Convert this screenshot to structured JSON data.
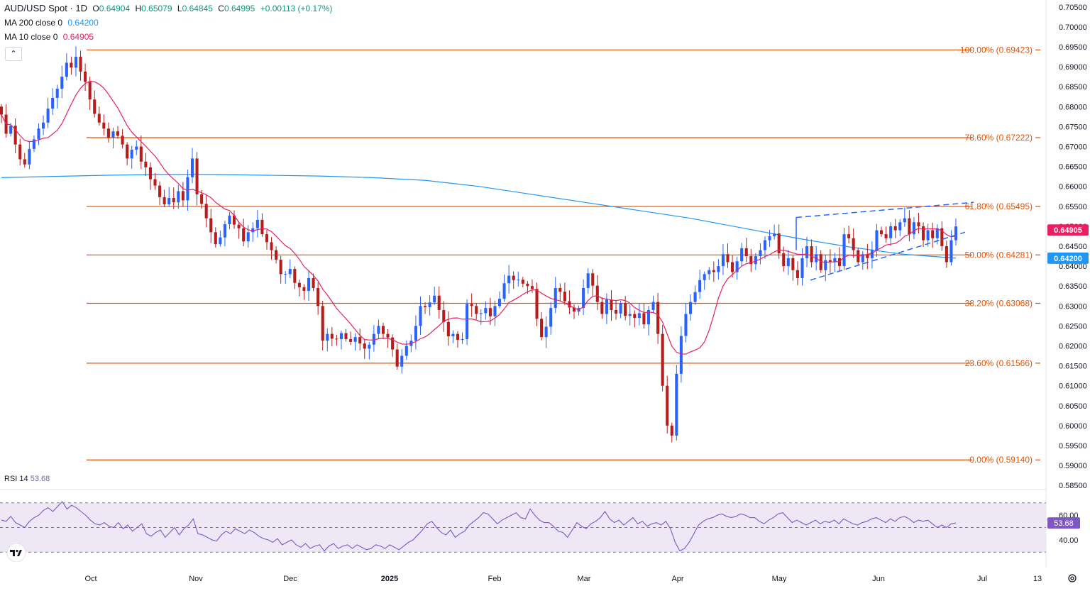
{
  "header": {
    "symbol": "AUD/USD Spot · 1D",
    "open_label": "O",
    "open": "0.64904",
    "high_label": "H",
    "high": "0.65079",
    "low_label": "L",
    "low": "0.64845",
    "close_label": "C",
    "close": "0.64995",
    "change": "+0.00113 (+0.17%)",
    "ma200_label": "MA 200 close 0",
    "ma200_value": "0.64200",
    "ma10_label": "MA 10 close 0",
    "ma10_value": "0.64905",
    "collapse_glyph": "⌃"
  },
  "rsi": {
    "label": "RSI 14",
    "value": "53.68"
  },
  "colors": {
    "up": "#2962ff",
    "down": "#b71c1c",
    "fib": "#e65100",
    "ma200": "#2196f3",
    "ma10": "#e91e63",
    "rsi_line": "#7e57c2",
    "rsi_bg": "#ede7f6"
  },
  "icons": {
    "logo": "tradingview-logo-icon",
    "settings": "gear-icon"
  },
  "chart_data": {
    "type": "candlestick",
    "ylim": [
      0.5845,
      0.7055
    ],
    "y_ticks": [
      "0.70500",
      "0.70000",
      "0.69500",
      "0.69000",
      "0.68500",
      "0.68000",
      "0.67500",
      "0.67000",
      "0.66500",
      "0.66000",
      "0.65500",
      "0.65000",
      "0.64500",
      "0.64000",
      "0.63500",
      "0.63000",
      "0.62500",
      "0.62000",
      "0.61500",
      "0.61000",
      "0.60500",
      "0.60000",
      "0.59500",
      "0.59000",
      "0.58500"
    ],
    "x_ticks": [
      "Oct",
      "Nov",
      "Dec",
      "2025",
      "Feb",
      "Mar",
      "Apr",
      "May",
      "Jun",
      "Jul",
      "13"
    ],
    "fib_levels": [
      {
        "label": "100.00% (0.69423)",
        "value": 0.69423
      },
      {
        "label": "78.60% (0.67222)",
        "value": 0.67222
      },
      {
        "label": "61.80% (0.65495)",
        "value": 0.65495
      },
      {
        "label": "50.00% (0.64281)",
        "value": 0.64281
      },
      {
        "label": "38.20% (0.63068)",
        "value": 0.63068
      },
      {
        "label": "23.60% (0.61566)",
        "value": 0.61566
      },
      {
        "label": "0.00% (0.59140)",
        "value": 0.5914
      }
    ],
    "price_badges": [
      {
        "label": "0.64905",
        "value": 0.64905,
        "series": "ma10"
      },
      {
        "label": "0.64200",
        "value": 0.642,
        "series": "ma200"
      }
    ],
    "close_series": [
      0.678,
      0.6732,
      0.6752,
      0.6705,
      0.6668,
      0.6655,
      0.6694,
      0.6718,
      0.6745,
      0.676,
      0.6795,
      0.6822,
      0.6845,
      0.6875,
      0.691,
      0.6898,
      0.6925,
      0.6888,
      0.6862,
      0.6818,
      0.6782,
      0.676,
      0.6745,
      0.6722,
      0.6738,
      0.6727,
      0.6705,
      0.667,
      0.6692,
      0.67,
      0.6662,
      0.6648,
      0.6618,
      0.6602,
      0.6573,
      0.6555,
      0.6571,
      0.656,
      0.6588,
      0.6565,
      0.6623,
      0.667,
      0.658,
      0.6556,
      0.652,
      0.6485,
      0.6455,
      0.6472,
      0.6505,
      0.6527,
      0.6504,
      0.6495,
      0.6462,
      0.6485,
      0.6495,
      0.6516,
      0.648,
      0.646,
      0.644,
      0.6416,
      0.638,
      0.638,
      0.6393,
      0.6358,
      0.6347,
      0.6338,
      0.637,
      0.6345,
      0.63,
      0.6213,
      0.623,
      0.6218,
      0.6217,
      0.6232,
      0.6217,
      0.621,
      0.6222,
      0.6206,
      0.6193,
      0.6203,
      0.623,
      0.625,
      0.623,
      0.6221,
      0.6191,
      0.6148,
      0.6175,
      0.62,
      0.6213,
      0.625,
      0.63,
      0.6297,
      0.6309,
      0.6326,
      0.629,
      0.626,
      0.6224,
      0.623,
      0.6215,
      0.6217,
      0.6305,
      0.63,
      0.628,
      0.6282,
      0.6295,
      0.6274,
      0.63,
      0.6318,
      0.6357,
      0.6376,
      0.6365,
      0.6366,
      0.6356,
      0.635,
      0.6343,
      0.6268,
      0.6222,
      0.6248,
      0.6295,
      0.6345,
      0.6336,
      0.6312,
      0.6296,
      0.6286,
      0.6295,
      0.6345,
      0.6382,
      0.6351,
      0.631,
      0.628,
      0.6316,
      0.629,
      0.6281,
      0.6307,
      0.6275,
      0.628,
      0.627,
      0.6282,
      0.6254,
      0.629,
      0.631,
      0.623,
      0.61,
      0.6,
      0.5975,
      0.613,
      0.6225,
      0.628,
      0.631,
      0.6335,
      0.6365,
      0.638,
      0.639,
      0.6385,
      0.64,
      0.643,
      0.641,
      0.6385,
      0.6412,
      0.6445,
      0.6425,
      0.6405,
      0.6425,
      0.644,
      0.6465,
      0.6475,
      0.6482,
      0.6432,
      0.64,
      0.642,
      0.639,
      0.637,
      0.642,
      0.645,
      0.641,
      0.643,
      0.639,
      0.6415,
      0.641,
      0.642,
      0.64,
      0.648,
      0.647,
      0.644,
      0.641,
      0.643,
      0.642,
      0.644,
      0.649,
      0.648,
      0.647,
      0.65,
      0.649,
      0.651,
      0.652,
      0.648,
      0.651,
      0.65,
      0.6465,
      0.649,
      0.647,
      0.6495,
      0.645,
      0.641,
      0.6465,
      0.64995
    ],
    "ma200_series": [
      0.6622,
      0.6625,
      0.6628,
      0.663,
      0.663,
      0.6628,
      0.6626,
      0.6622,
      0.6615,
      0.66,
      0.658,
      0.656,
      0.654,
      0.652,
      0.6495,
      0.647,
      0.6448,
      0.643,
      0.642
    ],
    "rsi_series": [
      56,
      55,
      59,
      54,
      52,
      50,
      55,
      58,
      60,
      64,
      66,
      63,
      67,
      71,
      65,
      68,
      66,
      63,
      60,
      56,
      53,
      52,
      54,
      51,
      50,
      54,
      49,
      52,
      47,
      50,
      53,
      45,
      43,
      46,
      48,
      42,
      46,
      50,
      44,
      49,
      52,
      57,
      45,
      44,
      42,
      40,
      39,
      44,
      47,
      45,
      49,
      47,
      45,
      48,
      46,
      43,
      41,
      40,
      38,
      41,
      36,
      38,
      40,
      36,
      34,
      37,
      33,
      35,
      36,
      31,
      35,
      37,
      33,
      35,
      36,
      33,
      36,
      34,
      32,
      33,
      36,
      35,
      33,
      36,
      34,
      32,
      35,
      38,
      40,
      44,
      48,
      53,
      55,
      50,
      46,
      44,
      48,
      42,
      45,
      47,
      52,
      55,
      58,
      62,
      61,
      57,
      53,
      56,
      58,
      60,
      62,
      58,
      57,
      65,
      60,
      56,
      54,
      54,
      51,
      47,
      46,
      42,
      48,
      54,
      51,
      49,
      53,
      55,
      58,
      63,
      57,
      54,
      56,
      52,
      55,
      58,
      53,
      55,
      51,
      53,
      54,
      52,
      55,
      49,
      38,
      31,
      33,
      38,
      45,
      52,
      55,
      57,
      58,
      60,
      61,
      59,
      58,
      59,
      61,
      60,
      58,
      58,
      55,
      53,
      56,
      58,
      61,
      62,
      58,
      54,
      56,
      54,
      52,
      54,
      56,
      53,
      55,
      54,
      56,
      53,
      57,
      55,
      53,
      52,
      54,
      55,
      57,
      58,
      56,
      54,
      57,
      55,
      58,
      59,
      57,
      54,
      56,
      55,
      56,
      53,
      50,
      52,
      50,
      53,
      53.68
    ],
    "rsi_levels": [
      70,
      50,
      30
    ],
    "rsi_ticks": [
      "60.00",
      "40.00"
    ]
  }
}
